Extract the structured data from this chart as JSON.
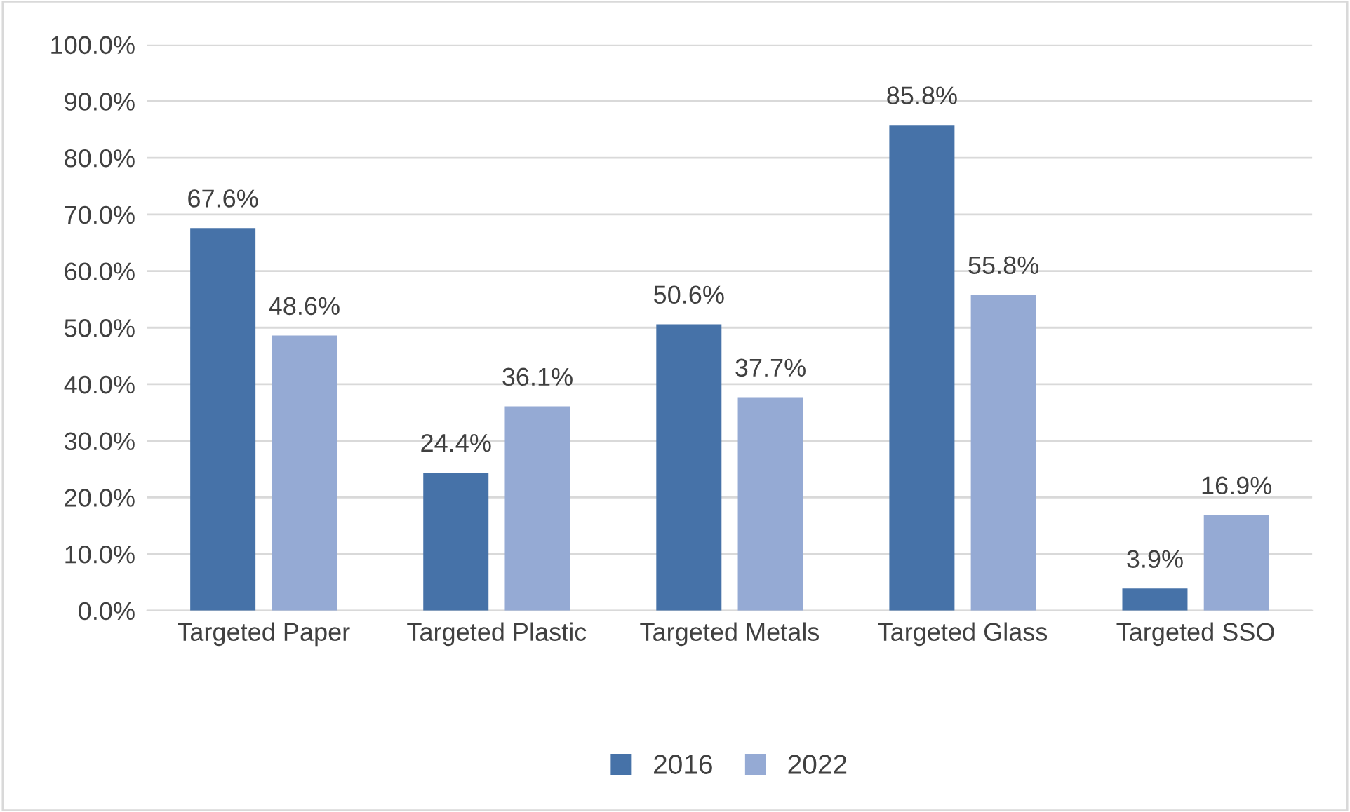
{
  "chart_data": {
    "type": "bar",
    "categories": [
      "Targeted Paper",
      "Targeted Plastic",
      "Targeted Metals",
      "Targeted Glass",
      "Targeted SSO"
    ],
    "series": [
      {
        "name": "2016",
        "color": "#4672a8",
        "values": [
          67.6,
          24.4,
          50.6,
          85.8,
          3.9
        ],
        "value_labels": [
          "67.6%",
          "24.4%",
          "50.6%",
          "85.8%",
          "3.9%"
        ]
      },
      {
        "name": "2022",
        "color": "#95aad4",
        "values": [
          48.6,
          36.1,
          37.7,
          55.8,
          16.9
        ],
        "value_labels": [
          "48.6%",
          "36.1%",
          "37.7%",
          "55.8%",
          "16.9%"
        ]
      }
    ],
    "ylim": [
      0,
      100
    ],
    "yticks": [
      {
        "value": 0,
        "label": "0.0%"
      },
      {
        "value": 10,
        "label": "10.0%"
      },
      {
        "value": 20,
        "label": "20.0%"
      },
      {
        "value": 30,
        "label": "30.0%"
      },
      {
        "value": 40,
        "label": "40.0%"
      },
      {
        "value": 50,
        "label": "50.0%"
      },
      {
        "value": 60,
        "label": "60.0%"
      },
      {
        "value": 70,
        "label": "70.0%"
      },
      {
        "value": 80,
        "label": "80.0%"
      },
      {
        "value": 90,
        "label": "90.0%"
      },
      {
        "value": 100,
        "label": "100.0%"
      }
    ],
    "grid": "y",
    "legend": "bottom"
  }
}
